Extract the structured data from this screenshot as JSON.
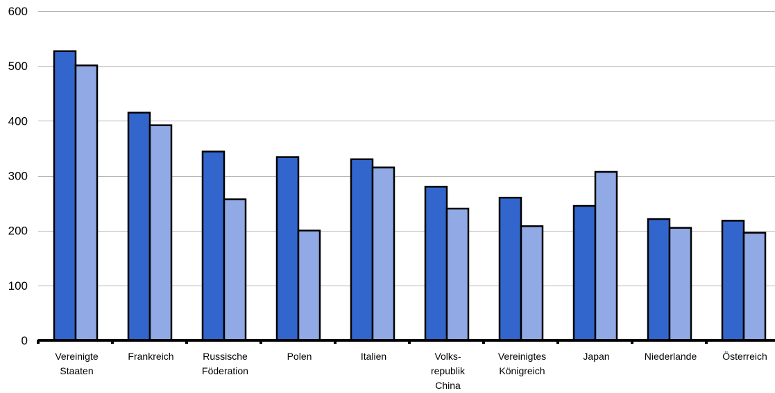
{
  "chart_data": {
    "type": "bar",
    "title": "",
    "xlabel": "",
    "ylabel": "",
    "ylim": [
      0,
      600
    ],
    "yticks": [
      0,
      100,
      200,
      300,
      400,
      500,
      600
    ],
    "grid": true,
    "legend": "none",
    "categories": [
      [
        "Vereinigte",
        "Staaten"
      ],
      [
        "Frankreich"
      ],
      [
        "Russische",
        "Föderation"
      ],
      [
        "Polen"
      ],
      [
        "Italien"
      ],
      [
        "Volks-",
        "republik",
        "China"
      ],
      [
        "Vereinigtes",
        "Königreich"
      ],
      [
        "Japan"
      ],
      [
        "Niederlande"
      ],
      [
        "Österreich"
      ]
    ],
    "series": [
      {
        "color": "#3366cc",
        "values": [
          527,
          415,
          344,
          334,
          330,
          280,
          260,
          245,
          221,
          218
        ]
      },
      {
        "color": "#91aae5",
        "values": [
          501,
          392,
          257,
          200,
          315,
          240,
          208,
          307,
          205,
          196
        ]
      }
    ],
    "colors": {
      "grid": "#b3b3b3",
      "axis": "#000000",
      "bar_border": "#000000"
    }
  }
}
